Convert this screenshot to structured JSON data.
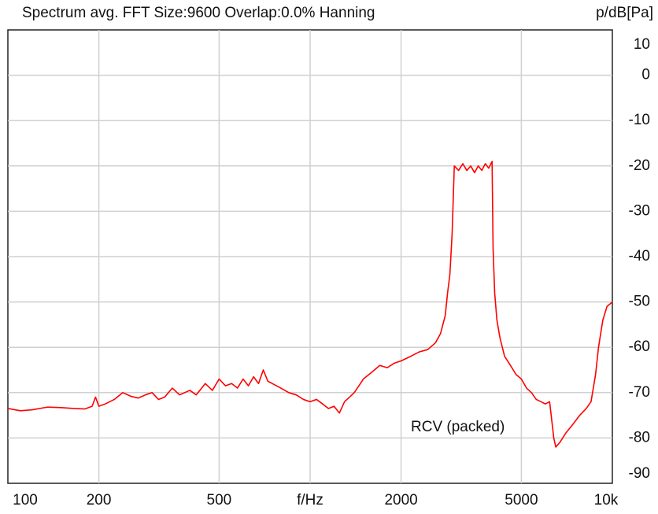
{
  "chart_data": {
    "type": "line",
    "title": "Spectrum avg.  FFT Size:9600  Overlap:0.0%  Hanning",
    "y_label": "p/dB[Pa]",
    "log_x": true,
    "grid": true,
    "xlim": [
      100,
      10000
    ],
    "xticks": [
      100,
      200,
      500,
      {
        "value": 1000,
        "label": "f/Hz"
      },
      2000,
      5000,
      {
        "value": 10000,
        "label": "10k"
      }
    ],
    "ylim": [
      -90,
      10
    ],
    "yticks": [
      10,
      0,
      -10,
      -20,
      -30,
      -40,
      -50,
      -60,
      -70,
      -80,
      -90
    ],
    "annotations": [
      {
        "text": "RCV (packed)"
      }
    ],
    "x": [
      100,
      110,
      120,
      135,
      150,
      165,
      180,
      190,
      195,
      200,
      210,
      225,
      240,
      255,
      270,
      285,
      300,
      315,
      330,
      350,
      370,
      400,
      420,
      450,
      475,
      500,
      525,
      550,
      575,
      600,
      625,
      650,
      675,
      700,
      725,
      750,
      800,
      850,
      900,
      950,
      1000,
      1050,
      1100,
      1150,
      1200,
      1250,
      1300,
      1350,
      1400,
      1450,
      1500,
      1600,
      1700,
      1800,
      1900,
      2000,
      2150,
      2300,
      2450,
      2600,
      2700,
      2800,
      2850,
      2900,
      2950,
      3000,
      3100,
      3200,
      3300,
      3400,
      3500,
      3600,
      3700,
      3800,
      3900,
      4000,
      4030,
      4080,
      4150,
      4250,
      4400,
      4600,
      4800,
      5000,
      5200,
      5400,
      5600,
      5800,
      6000,
      6200,
      6300,
      6400,
      6500,
      6700,
      7000,
      7400,
      7800,
      8200,
      8500,
      8800,
      9000,
      9300,
      9600,
      10000
    ],
    "series": [
      {
        "color": "#ff0000",
        "values": [
          -73.5,
          -74,
          -73.8,
          -73.2,
          -73.3,
          -73.5,
          -73.6,
          -73,
          -71,
          -73,
          -72.5,
          -71.5,
          -70,
          -70.8,
          -71.2,
          -70.5,
          -70,
          -71.5,
          -71,
          -69,
          -70.5,
          -69.5,
          -70.5,
          -68,
          -69.5,
          -67,
          -68.5,
          -68,
          -69,
          -67,
          -68.5,
          -66.5,
          -68,
          -65,
          -67.5,
          -68,
          -69,
          -70,
          -70.5,
          -71.5,
          -72,
          -71.5,
          -72.5,
          -73.5,
          -73,
          -74.5,
          -72,
          -71,
          -70,
          -68.5,
          -67,
          -65.5,
          -64,
          -64.5,
          -63.5,
          -63,
          -62,
          -61,
          -60.5,
          -59,
          -57,
          -53,
          -48,
          -44,
          -35,
          -20,
          -21,
          -19.5,
          -21,
          -20,
          -21.5,
          -20,
          -21,
          -19.5,
          -20.5,
          -19,
          -38,
          -48,
          -54,
          -58,
          -62,
          -64,
          -66,
          -67,
          -69,
          -70,
          -71.5,
          -72,
          -72.5,
          -72,
          -76,
          -80,
          -82,
          -81,
          -79,
          -77,
          -75,
          -73.5,
          -72,
          -66,
          -60,
          -54,
          -51,
          -50
        ]
      }
    ]
  }
}
